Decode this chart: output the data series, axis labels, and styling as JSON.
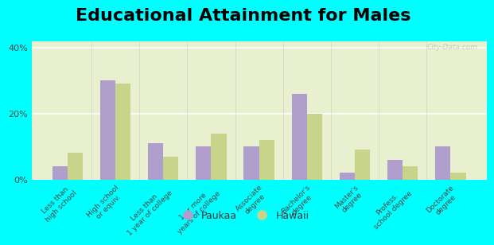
{
  "title": "Educational Attainment for Males",
  "categories": [
    "Less than\nhigh school",
    "High school\nor equiv.",
    "Less than\n1 year of college",
    "1 or more\nyears of college",
    "Associate\ndegree",
    "Bachelor's\ndegree",
    "Master's\ndegree",
    "Profess.\nschool degree",
    "Doctorate\ndegree"
  ],
  "paukaa_values": [
    4,
    30,
    11,
    10,
    10,
    26,
    2,
    6,
    10
  ],
  "hawaii_values": [
    8,
    29,
    7,
    14,
    12,
    20,
    9,
    4,
    2
  ],
  "paukaa_color": "#b09fcc",
  "hawaii_color": "#c8d48a",
  "plot_bg_gradient_top": "#e8f0d0",
  "plot_bg_gradient_bottom": "#f5f8ec",
  "outer_bg_color": "#00ffff",
  "ylim": [
    0,
    42
  ],
  "yticks": [
    0,
    20,
    40
  ],
  "ytick_labels": [
    "0%",
    "20%",
    "40%"
  ],
  "title_fontsize": 16,
  "tick_fontsize": 6.5,
  "legend_labels": [
    "Paukaa",
    "Hawaii"
  ],
  "watermark": "City-Data.com"
}
